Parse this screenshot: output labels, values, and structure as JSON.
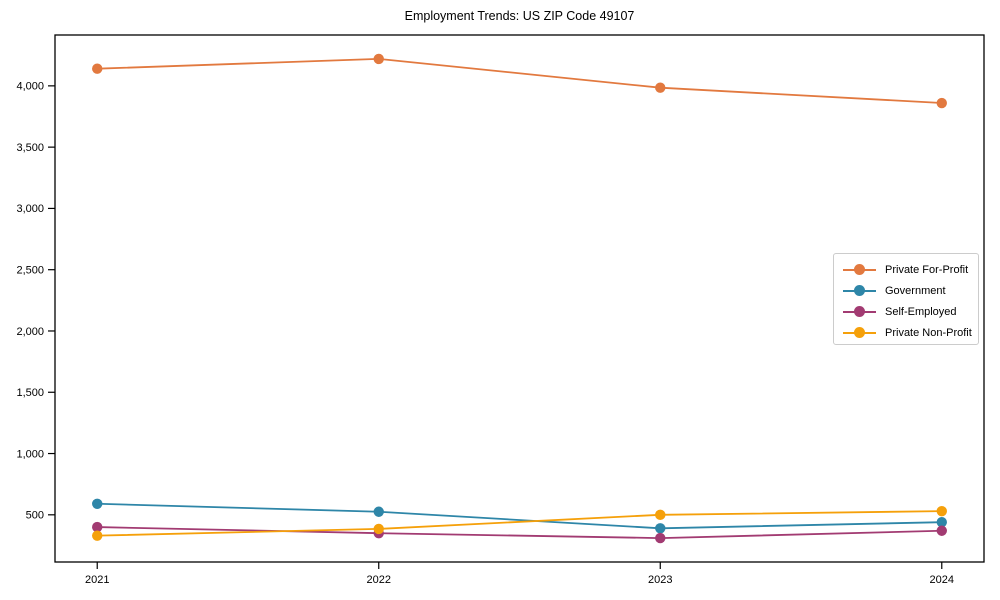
{
  "chart_data": {
    "type": "line",
    "title": "Employment Trends: US ZIP Code 49107",
    "x": [
      2021,
      2022,
      2023,
      2024
    ],
    "x_tick_labels": [
      "2021",
      "2022",
      "2023",
      "2024"
    ],
    "series": [
      {
        "name": "Private For-Profit",
        "color": "#E2793F",
        "values": [
          4140,
          4220,
          3985,
          3860
        ]
      },
      {
        "name": "Government",
        "color": "#2E86A8",
        "values": [
          590,
          525,
          390,
          440
        ]
      },
      {
        "name": "Self-Employed",
        "color": "#A23B72",
        "values": [
          400,
          350,
          310,
          370
        ]
      },
      {
        "name": "Private Non-Profit",
        "color": "#F5A00A",
        "values": [
          330,
          385,
          500,
          530
        ]
      }
    ],
    "xlim": [
      2020.85,
      2024.15
    ],
    "ylim": [
      115,
      4415
    ],
    "y_ticks": [
      500,
      1000,
      1500,
      2000,
      2500,
      3000,
      3500,
      4000
    ],
    "y_tick_labels": [
      "500",
      "1,000",
      "1,500",
      "2,000",
      "2,500",
      "3,000",
      "3,500",
      "4,000"
    ],
    "grid": false,
    "legend_position": "center right",
    "axis_color": "#000000",
    "background_color": "#ffffff"
  }
}
